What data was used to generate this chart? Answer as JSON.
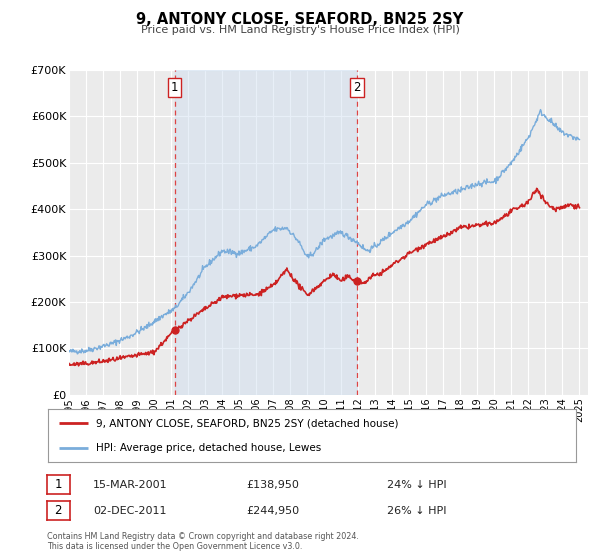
{
  "title": "9, ANTONY CLOSE, SEAFORD, BN25 2SY",
  "subtitle": "Price paid vs. HM Land Registry's House Price Index (HPI)",
  "ylim": [
    0,
    700000
  ],
  "yticks": [
    0,
    100000,
    200000,
    300000,
    400000,
    500000,
    600000,
    700000
  ],
  "ytick_labels": [
    "£0",
    "£100K",
    "£200K",
    "£300K",
    "£400K",
    "£500K",
    "£600K",
    "£700K"
  ],
  "xlim_start": 1995.0,
  "xlim_end": 2025.5,
  "background_color": "#ffffff",
  "plot_bg_color": "#ebebeb",
  "grid_color": "#ffffff",
  "hpi_color": "#7aaddb",
  "price_color": "#cc2222",
  "marker_color": "#cc2222",
  "sale1_date_num": 2001.2055,
  "sale1_price": 138950,
  "sale1_label": "1",
  "sale2_date_num": 2011.918,
  "sale2_price": 244950,
  "sale2_label": "2",
  "vline_color": "#dd4444",
  "shade_color": "#ccddf0",
  "legend_line1": "9, ANTONY CLOSE, SEAFORD, BN25 2SY (detached house)",
  "legend_line2": "HPI: Average price, detached house, Lewes",
  "annotation1_date": "15-MAR-2001",
  "annotation1_price": "£138,950",
  "annotation1_pct": "24% ↓ HPI",
  "annotation2_date": "02-DEC-2011",
  "annotation2_price": "£244,950",
  "annotation2_pct": "26% ↓ HPI",
  "footnote1": "Contains HM Land Registry data © Crown copyright and database right 2024.",
  "footnote2": "This data is licensed under the Open Government Licence v3.0."
}
